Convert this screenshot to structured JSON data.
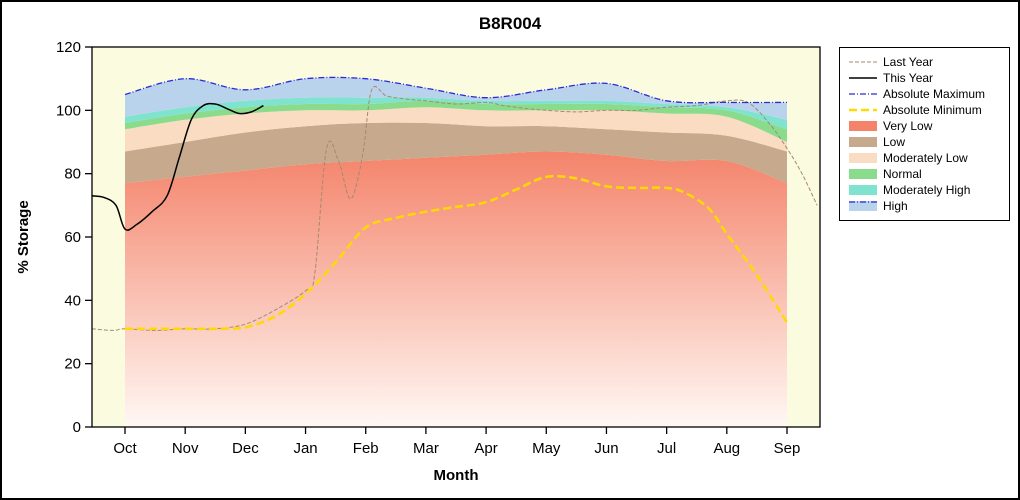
{
  "window": {
    "background": "#ffffff",
    "border_color": "#000000"
  },
  "chart_data": {
    "type": "area",
    "title": "B8R004",
    "xlabel": "Month",
    "ylabel": "% Storage",
    "ylim": [
      0,
      120
    ],
    "yticks": [
      0,
      20,
      40,
      60,
      80,
      100,
      120
    ],
    "categories": [
      "Oct",
      "Nov",
      "Dec",
      "Jan",
      "Feb",
      "Mar",
      "Apr",
      "May",
      "Jun",
      "Jul",
      "Aug",
      "Sep"
    ],
    "plot_bg": "#fbfbdf",
    "grid": false,
    "legend_position": "right",
    "bands": [
      {
        "name": "Very Low",
        "color_top": "#f4836a",
        "color_bottom": "#fff8f4",
        "top": [
          77,
          79,
          81,
          83,
          84,
          85,
          86,
          87,
          86,
          84,
          84,
          77
        ]
      },
      {
        "name": "Low",
        "color": "#c7a98d",
        "top": [
          87,
          90,
          93,
          95,
          96,
          96,
          95,
          95,
          94,
          93,
          92,
          87
        ]
      },
      {
        "name": "Moderately Low",
        "color": "#f9dcc1",
        "top": [
          94,
          97,
          99,
          100,
          100,
          101,
          100,
          100,
          100,
          99,
          98,
          90
        ]
      },
      {
        "name": "Normal",
        "color": "#8adc8c",
        "top": [
          96,
          99,
          101,
          102,
          102,
          103,
          102,
          102,
          102,
          101,
          100,
          94
        ]
      },
      {
        "name": "Moderately High",
        "color": "#7fe3d0",
        "top": [
          98,
          101,
          103,
          104,
          104,
          104,
          103,
          103,
          103,
          102,
          101,
          97
        ]
      },
      {
        "name": "High",
        "color": "#b9d3ec",
        "top": [
          105,
          110,
          106.5,
          110,
          110,
          107,
          104,
          106.5,
          108.5,
          103,
          102.5,
          102.5
        ]
      }
    ],
    "series": [
      {
        "name": "Last Year",
        "color": "#a58a6f",
        "width": 1,
        "dash": "4,2",
        "points": [
          [
            -0.55,
            31
          ],
          [
            -0.2,
            30.5
          ],
          [
            0,
            31
          ],
          [
            0.5,
            30.5
          ],
          [
            1,
            31
          ],
          [
            1.5,
            31
          ],
          [
            2,
            32.5
          ],
          [
            2.5,
            37
          ],
          [
            3,
            43
          ],
          [
            3.15,
            48
          ],
          [
            3.35,
            88
          ],
          [
            3.55,
            84
          ],
          [
            3.75,
            72
          ],
          [
            3.95,
            86
          ],
          [
            4.1,
            106.5
          ],
          [
            4.35,
            104.5
          ],
          [
            4.7,
            103.5
          ],
          [
            5,
            103
          ],
          [
            5.5,
            102
          ],
          [
            6,
            102.5
          ],
          [
            6.3,
            101.5
          ],
          [
            6.7,
            100.5
          ],
          [
            7,
            100
          ],
          [
            7.5,
            99.5
          ],
          [
            8,
            100
          ],
          [
            8.5,
            100
          ],
          [
            9,
            101
          ],
          [
            9.5,
            101.5
          ],
          [
            10,
            103
          ],
          [
            10.35,
            102.5
          ],
          [
            10.7,
            96
          ],
          [
            11,
            88
          ],
          [
            11.25,
            80
          ],
          [
            11.5,
            70
          ]
        ]
      },
      {
        "name": "Absolute Minimum",
        "color": "#ffd900",
        "width": 2.5,
        "dash": "8,4",
        "points": [
          [
            0,
            31
          ],
          [
            0.5,
            31
          ],
          [
            1,
            31
          ],
          [
            1.5,
            31
          ],
          [
            2,
            31.5
          ],
          [
            2.5,
            35
          ],
          [
            3,
            42
          ],
          [
            3.5,
            52
          ],
          [
            4,
            63
          ],
          [
            4.5,
            66
          ],
          [
            5,
            68
          ],
          [
            5.5,
            69.5
          ],
          [
            6,
            71
          ],
          [
            6.5,
            75
          ],
          [
            7,
            79
          ],
          [
            7.5,
            78.5
          ],
          [
            8,
            76
          ],
          [
            8.5,
            75.5
          ],
          [
            9,
            75.5
          ],
          [
            9.3,
            74
          ],
          [
            9.7,
            69
          ],
          [
            10,
            61
          ],
          [
            10.5,
            48
          ],
          [
            11,
            33
          ]
        ]
      },
      {
        "name": "Absolute Maximum",
        "color": "#2b2bd5",
        "width": 1.3,
        "dash": "6,2,1,2",
        "points": [
          [
            0,
            105
          ],
          [
            1,
            110
          ],
          [
            2,
            106.5
          ],
          [
            3,
            110
          ],
          [
            4,
            110
          ],
          [
            5,
            107
          ],
          [
            6,
            104
          ],
          [
            7,
            106.5
          ],
          [
            8,
            108.5
          ],
          [
            9,
            103
          ],
          [
            10,
            102.5
          ],
          [
            11,
            102.5
          ]
        ]
      },
      {
        "name": "This Year",
        "color": "#000000",
        "width": 1.5,
        "dash": null,
        "points": [
          [
            -0.55,
            73
          ],
          [
            -0.35,
            72.5
          ],
          [
            -0.15,
            70
          ],
          [
            0,
            62.5
          ],
          [
            0.2,
            64
          ],
          [
            0.45,
            68
          ],
          [
            0.7,
            73
          ],
          [
            0.9,
            85
          ],
          [
            1.1,
            97
          ],
          [
            1.3,
            101.5
          ],
          [
            1.5,
            102
          ],
          [
            1.7,
            100.5
          ],
          [
            1.9,
            99
          ],
          [
            2.1,
            99.5
          ],
          [
            2.3,
            101.5
          ]
        ]
      }
    ],
    "legend": [
      {
        "label": "Last Year",
        "sample": "line",
        "color": "#a58a6f",
        "dash": "4,2",
        "width": 1
      },
      {
        "label": "This Year",
        "sample": "line",
        "color": "#000000",
        "dash": "",
        "width": 1.5
      },
      {
        "label": "Absolute Maximum",
        "sample": "line",
        "color": "#2b2bd5",
        "dash": "6,2,1,2",
        "width": 1.3
      },
      {
        "label": "Absolute Minimum",
        "sample": "line",
        "color": "#ffd900",
        "dash": "8,4",
        "width": 2.5
      },
      {
        "label": "Very Low",
        "sample": "fill",
        "color": "#f4836a"
      },
      {
        "label": "Low",
        "sample": "fill",
        "color": "#c7a98d"
      },
      {
        "label": "Moderately Low",
        "sample": "fill",
        "color": "#f9dcc1"
      },
      {
        "label": "Normal",
        "sample": "fill",
        "color": "#8adc8c"
      },
      {
        "label": "Moderately High",
        "sample": "fill",
        "color": "#7fe3d0"
      },
      {
        "label": "High",
        "sample": "fill",
        "color": "#b9d3ec",
        "topline": {
          "color": "#2b2bd5",
          "dash": "6,2,1,2"
        }
      }
    ]
  }
}
